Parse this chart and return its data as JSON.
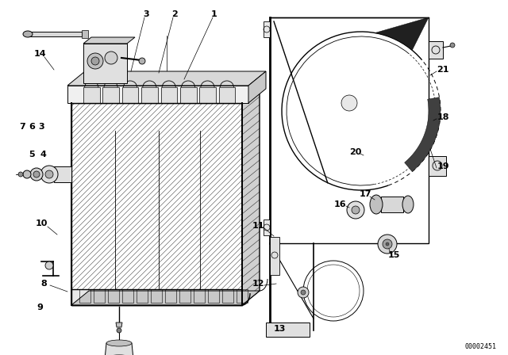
{
  "bg_color": "#ffffff",
  "diagram_id": "00002451",
  "line_color": "#000000",
  "gray_light": "#e8e8e8",
  "gray_mid": "#cccccc",
  "gray_dark": "#999999"
}
